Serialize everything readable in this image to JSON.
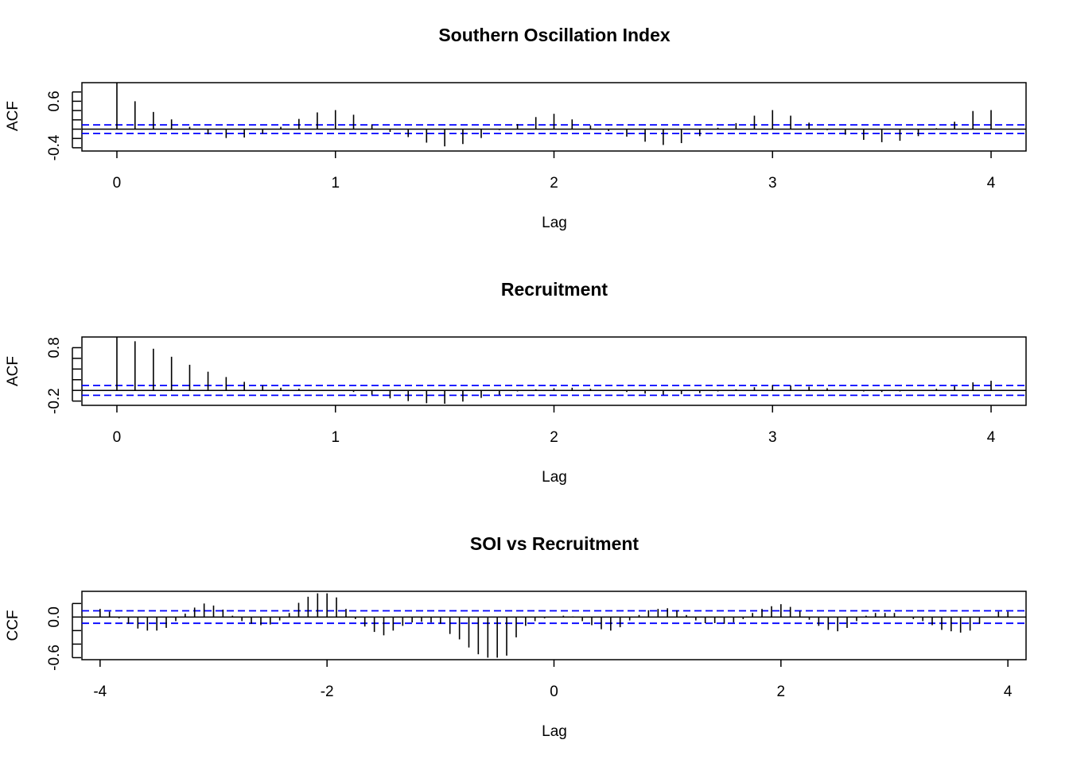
{
  "chart_data": [
    {
      "type": "bar",
      "title": "Southern Oscillation Index",
      "xlabel": "Lag",
      "ylabel": "ACF",
      "xlim": [
        -0.16,
        4.16
      ],
      "ylim": [
        -0.47,
        1.0
      ],
      "x_ticks": [
        "0",
        "1",
        "2",
        "3",
        "4"
      ],
      "y_ticks": [
        "-0.4",
        "0.6"
      ],
      "y_minor_ticks": [
        -0.4,
        -0.2,
        0.0,
        0.2,
        0.4,
        0.6,
        0.8
      ],
      "confidence_band": 0.092,
      "colors": {
        "series": "#000000",
        "band": "#0000ff",
        "frame": "#000000"
      },
      "x": [
        0,
        0.083,
        0.167,
        0.25,
        0.333,
        0.417,
        0.5,
        0.583,
        0.667,
        0.75,
        0.833,
        0.917,
        1.0,
        1.083,
        1.167,
        1.25,
        1.333,
        1.417,
        1.5,
        1.583,
        1.667,
        1.75,
        1.833,
        1.917,
        2.0,
        2.083,
        2.167,
        2.25,
        2.333,
        2.417,
        2.5,
        2.583,
        2.667,
        2.75,
        2.833,
        2.917,
        3.0,
        3.083,
        3.167,
        3.25,
        3.333,
        3.417,
        3.5,
        3.583,
        3.667,
        3.75,
        3.833,
        3.917,
        4.0
      ],
      "values": [
        1.0,
        0.6,
        0.37,
        0.21,
        0.05,
        -0.11,
        -0.19,
        -0.18,
        -0.1,
        0.05,
        0.22,
        0.36,
        0.41,
        0.31,
        0.1,
        -0.06,
        -0.17,
        -0.29,
        -0.37,
        -0.32,
        -0.19,
        -0.02,
        0.11,
        0.26,
        0.33,
        0.21,
        0.08,
        -0.04,
        -0.16,
        -0.27,
        -0.34,
        -0.3,
        -0.15,
        0.03,
        0.13,
        0.29,
        0.41,
        0.29,
        0.14,
        -0.02,
        -0.12,
        -0.23,
        -0.28,
        -0.25,
        -0.15,
        0.02,
        0.16,
        0.39,
        0.41
      ]
    },
    {
      "type": "bar",
      "title": "Recruitment",
      "xlabel": "Lag",
      "ylabel": "ACF",
      "xlim": [
        -0.16,
        4.16
      ],
      "ylim": [
        -0.28,
        1.0
      ],
      "x_ticks": [
        "0",
        "1",
        "2",
        "3",
        "4"
      ],
      "y_ticks": [
        "-0.2",
        "0.8"
      ],
      "y_minor_ticks": [
        -0.2,
        0.0,
        0.2,
        0.4,
        0.6,
        0.8
      ],
      "confidence_band": 0.092,
      "colors": {
        "series": "#000000",
        "band": "#0000ff",
        "frame": "#000000"
      },
      "x": [
        0,
        0.083,
        0.167,
        0.25,
        0.333,
        0.417,
        0.5,
        0.583,
        0.667,
        0.75,
        0.833,
        0.917,
        1.0,
        1.083,
        1.167,
        1.25,
        1.333,
        1.417,
        1.5,
        1.583,
        1.667,
        1.75,
        1.833,
        1.917,
        2.0,
        2.083,
        2.167,
        2.25,
        2.333,
        2.417,
        2.5,
        2.583,
        2.667,
        2.75,
        2.833,
        2.917,
        3.0,
        3.083,
        3.167,
        3.25,
        3.333,
        3.417,
        3.5,
        3.583,
        3.667,
        3.75,
        3.833,
        3.917,
        4.0
      ],
      "values": [
        1.0,
        0.92,
        0.78,
        0.63,
        0.48,
        0.35,
        0.25,
        0.16,
        0.09,
        0.05,
        0.03,
        0.01,
        -0.01,
        -0.03,
        -0.08,
        -0.15,
        -0.2,
        -0.24,
        -0.25,
        -0.21,
        -0.14,
        -0.08,
        -0.02,
        0.02,
        0.04,
        0.05,
        0.03,
        0.0,
        -0.03,
        -0.06,
        -0.08,
        -0.07,
        -0.05,
        -0.02,
        0.02,
        0.06,
        0.1,
        0.09,
        0.07,
        0.04,
        0.01,
        -0.02,
        -0.03,
        -0.02,
        0.0,
        0.03,
        0.08,
        0.15,
        0.18
      ]
    },
    {
      "type": "bar",
      "title": "SOI vs Recruitment",
      "xlabel": "Lag",
      "ylabel": "CCF",
      "xlim": [
        -4.16,
        4.16
      ],
      "ylim": [
        -0.63,
        0.38
      ],
      "x_ticks": [
        "-4",
        "-2",
        "0",
        "2",
        "4"
      ],
      "y_ticks": [
        "-0.6",
        "0.0"
      ],
      "y_minor_ticks": [
        -0.6,
        -0.4,
        -0.2,
        0.0,
        0.2
      ],
      "confidence_band": 0.092,
      "colors": {
        "series": "#000000",
        "band": "#0000ff",
        "frame": "#000000"
      },
      "x": [
        -4.0,
        -3.917,
        -3.833,
        -3.75,
        -3.667,
        -3.583,
        -3.5,
        -3.417,
        -3.333,
        -3.25,
        -3.167,
        -3.083,
        -3.0,
        -2.917,
        -2.833,
        -2.75,
        -2.667,
        -2.583,
        -2.5,
        -2.417,
        -2.333,
        -2.25,
        -2.167,
        -2.083,
        -2.0,
        -1.917,
        -1.833,
        -1.75,
        -1.667,
        -1.583,
        -1.5,
        -1.417,
        -1.333,
        -1.25,
        -1.167,
        -1.083,
        -1.0,
        -0.917,
        -0.833,
        -0.75,
        -0.667,
        -0.583,
        -0.5,
        -0.417,
        -0.333,
        -0.25,
        -0.167,
        -0.083,
        0.0,
        0.083,
        0.167,
        0.25,
        0.333,
        0.417,
        0.5,
        0.583,
        0.667,
        0.75,
        0.833,
        0.917,
        1.0,
        1.083,
        1.167,
        1.25,
        1.333,
        1.417,
        1.5,
        1.583,
        1.667,
        1.75,
        1.833,
        1.917,
        2.0,
        2.083,
        2.167,
        2.25,
        2.333,
        2.417,
        2.5,
        2.583,
        2.667,
        2.75,
        2.833,
        2.917,
        3.0,
        3.083,
        3.167,
        3.25,
        3.333,
        3.417,
        3.5,
        3.583,
        3.667,
        3.75,
        3.833,
        3.917,
        4.0
      ],
      "values": [
        0.12,
        0.08,
        -0.02,
        -0.1,
        -0.17,
        -0.2,
        -0.2,
        -0.16,
        -0.06,
        0.05,
        0.14,
        0.2,
        0.17,
        0.11,
        0.02,
        -0.06,
        -0.1,
        -0.12,
        -0.11,
        -0.05,
        0.06,
        0.21,
        0.3,
        0.35,
        0.35,
        0.29,
        0.12,
        -0.03,
        -0.14,
        -0.22,
        -0.27,
        -0.2,
        -0.13,
        -0.08,
        -0.07,
        -0.08,
        -0.1,
        -0.25,
        -0.33,
        -0.45,
        -0.55,
        -0.6,
        -0.6,
        -0.57,
        -0.3,
        -0.13,
        -0.06,
        -0.02,
        0.0,
        0.02,
        0.01,
        -0.06,
        -0.12,
        -0.18,
        -0.2,
        -0.15,
        -0.05,
        0.03,
        0.1,
        0.12,
        0.13,
        0.1,
        0.03,
        -0.05,
        -0.09,
        -0.09,
        -0.1,
        -0.08,
        -0.03,
        0.06,
        0.12,
        0.16,
        0.19,
        0.15,
        0.09,
        -0.04,
        -0.13,
        -0.19,
        -0.21,
        -0.16,
        -0.06,
        0.02,
        0.06,
        0.06,
        0.06,
        0.0,
        -0.03,
        -0.06,
        -0.12,
        -0.19,
        -0.21,
        -0.23,
        -0.2,
        -0.1,
        0.0,
        0.08,
        0.08
      ]
    }
  ]
}
